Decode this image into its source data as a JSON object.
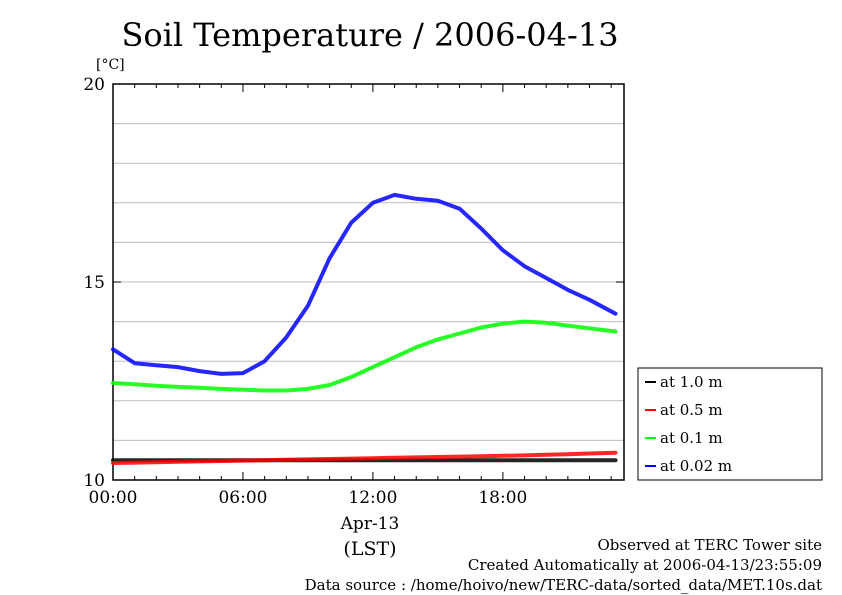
{
  "chart_data": {
    "type": "line",
    "title": "Soil Temperature / 2006-04-13",
    "ylabel": "[°C]",
    "xlabel": "Apr-13",
    "xunit": "(LST)",
    "xlim": [
      "00:00",
      "23:30"
    ],
    "ylim": [
      10,
      20
    ],
    "x_ticks": [
      "00:00",
      "06:00",
      "12:00",
      "18:00"
    ],
    "y_ticks": [
      "10",
      "15",
      "20"
    ],
    "grid": true,
    "legend_position": "right",
    "x_hours": [
      0,
      1,
      2,
      3,
      4,
      5,
      6,
      7,
      8,
      9,
      10,
      11,
      12,
      13,
      14,
      15,
      16,
      17,
      18,
      19,
      20,
      21,
      22,
      23.2
    ],
    "series": [
      {
        "name": "at 1.0 m",
        "color": "#000000",
        "values": [
          10.5,
          10.5,
          10.5,
          10.5,
          10.5,
          10.5,
          10.5,
          10.5,
          10.5,
          10.5,
          10.5,
          10.5,
          10.5,
          10.5,
          10.5,
          10.5,
          10.5,
          10.5,
          10.5,
          10.5,
          10.5,
          10.5,
          10.5,
          10.5
        ]
      },
      {
        "name": "at 0.5 m",
        "color": "#ff0000",
        "values": [
          10.43,
          10.44,
          10.45,
          10.46,
          10.47,
          10.48,
          10.49,
          10.5,
          10.51,
          10.52,
          10.53,
          10.54,
          10.55,
          10.56,
          10.57,
          10.58,
          10.59,
          10.6,
          10.61,
          10.62,
          10.64,
          10.65,
          10.67,
          10.69
        ]
      },
      {
        "name": "at 0.1 m",
        "color": "#00ff00",
        "values": [
          12.45,
          12.42,
          12.38,
          12.35,
          12.33,
          12.3,
          12.28,
          12.26,
          12.26,
          12.3,
          12.4,
          12.6,
          12.85,
          13.1,
          13.35,
          13.55,
          13.7,
          13.85,
          13.95,
          14.0,
          13.97,
          13.9,
          13.83,
          13.75
        ]
      },
      {
        "name": "at 0.02 m",
        "color": "#0000ff",
        "values": [
          13.3,
          12.95,
          12.9,
          12.85,
          12.75,
          12.68,
          12.7,
          13.0,
          13.6,
          14.4,
          15.6,
          16.5,
          17.0,
          17.2,
          17.1,
          17.05,
          16.85,
          16.35,
          15.8,
          15.4,
          15.1,
          14.8,
          14.55,
          14.2
        ]
      }
    ]
  },
  "footer": {
    "line1": "Observed at TERC Tower site",
    "line2": "Created Automatically at 2006-04-13/23:55:09",
    "line3": "Data source : /home/hoivo/new/TERC-data/sorted_data/MET.10s.dat"
  }
}
